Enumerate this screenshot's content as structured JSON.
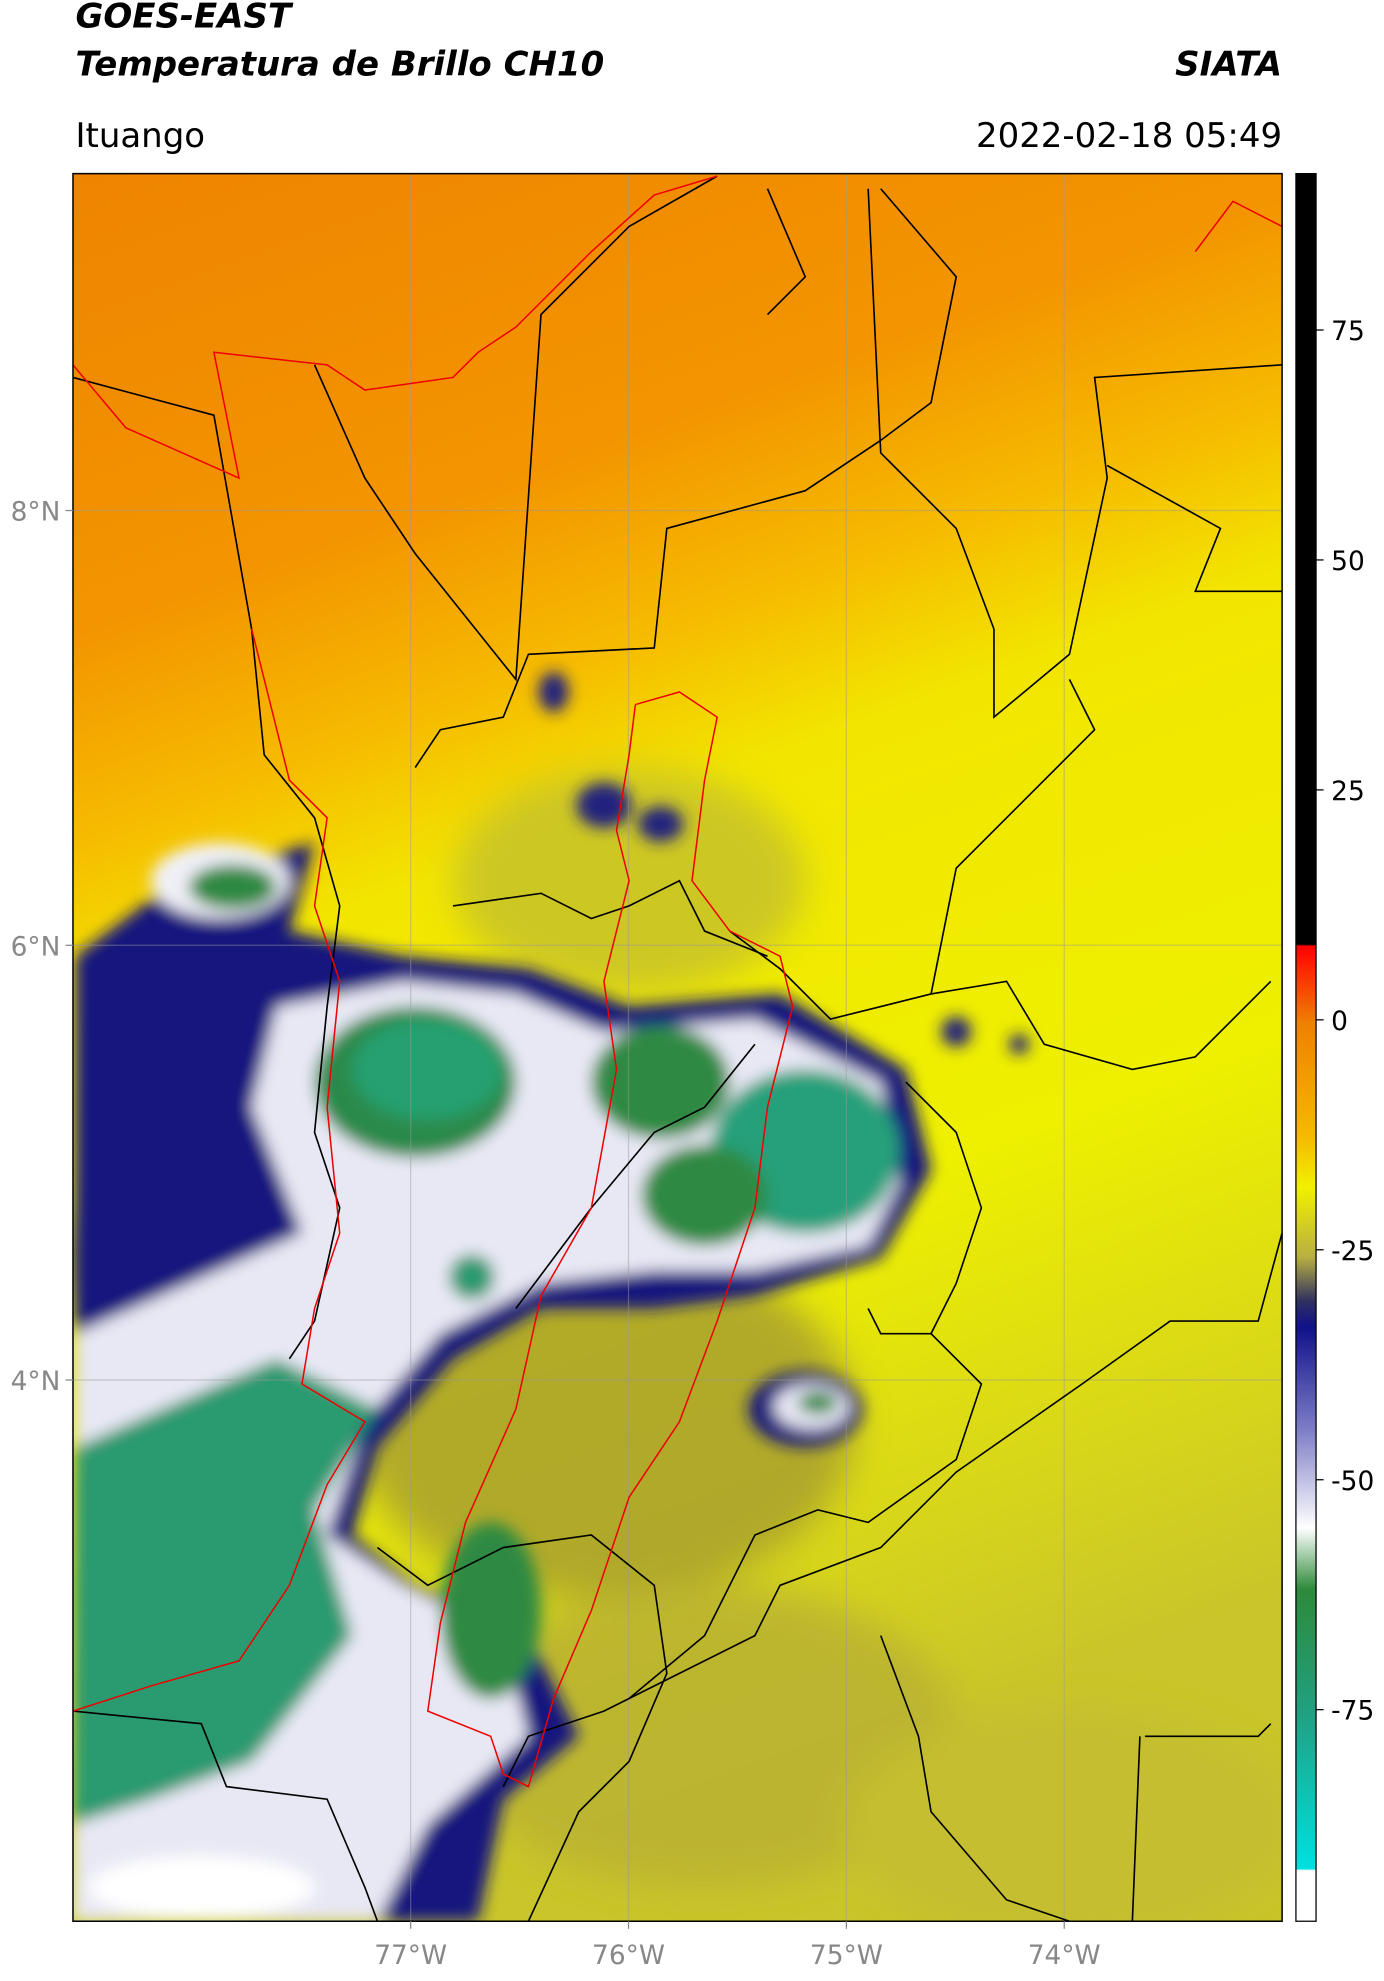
{
  "header": {
    "title": "GOES-EAST",
    "subtitle": "Temperatura de Brillo CH10",
    "source": "SIATA",
    "region": "Ituango",
    "datetime": "2022-02-18 05:49"
  },
  "map": {
    "xlim": [
      -78.55,
      -73.0
    ],
    "ylim": [
      1.51,
      9.55
    ],
    "xticks": [
      {
        "value": -77,
        "label": "77°W"
      },
      {
        "value": -76,
        "label": "76°W"
      },
      {
        "value": -75,
        "label": "75°W"
      },
      {
        "value": -74,
        "label": "74°W"
      }
    ],
    "yticks": [
      {
        "value": 8,
        "label": "8°N"
      },
      {
        "value": 6,
        "label": "6°N"
      },
      {
        "value": 4,
        "label": "4°N"
      }
    ],
    "grid": true
  },
  "colorbar": {
    "lim": [
      -98,
      92
    ],
    "ticks": [
      75,
      50,
      25,
      0,
      -25,
      -50,
      -75
    ]
  }
}
